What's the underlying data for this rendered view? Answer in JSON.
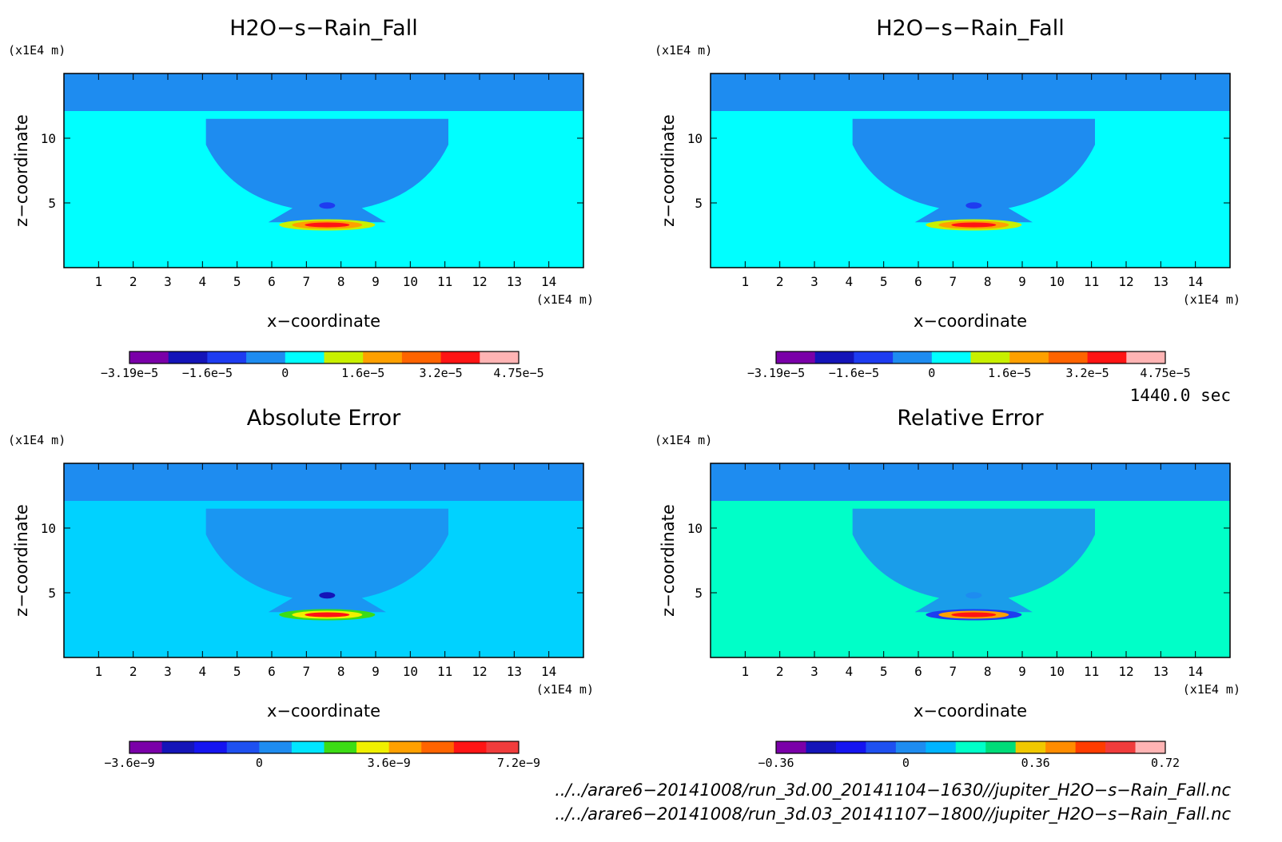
{
  "time_label": "1440.0 sec",
  "file_lines": [
    "../../arare6-20141008/run_3d.00_20141104-1630//jupiter_H2O-s-Rain_Fall.nc",
    "../../arare6-20141008/run_3d.03_20141107-1800//jupiter_H2O-s-Rain_Fall.nc"
  ],
  "colors": {
    "frame": "#000000"
  },
  "chart_data": [
    {
      "type": "heatmap",
      "title": "H2O-s-Rain_Fall",
      "xlabel": "x-coordinate",
      "ylabel": "z-coordinate",
      "xunit": "(x1E4 m)",
      "yunit": "(x1E4 m)",
      "xlim": [
        0,
        15
      ],
      "ylim": [
        0,
        15
      ],
      "xticks": [
        "1",
        "2",
        "3",
        "4",
        "5",
        "6",
        "7",
        "8",
        "9",
        "10",
        "11",
        "12",
        "13",
        "14"
      ],
      "yticks": [
        "5",
        "10"
      ],
      "colorbar": {
        "colors": [
          "#7a00a8",
          "#1414b8",
          "#1e3cf0",
          "#1e8cf0",
          "#00ffff",
          "#c8f000",
          "#ffa000",
          "#ff6400",
          "#ff1414",
          "#ffb4b4"
        ],
        "labels": [
          "-3.19e-5",
          "-1.6e-5",
          "0",
          "1.6e-5",
          "3.2e-5",
          "4.75e-5"
        ]
      },
      "field": {
        "background": "#00ffff",
        "top_layer": "#1e8cf0",
        "cloud": "#1e8cf0",
        "rain_core": [
          "#1e3cf0",
          "#ffa000",
          "#ff1414",
          "#c8f000"
        ]
      }
    },
    {
      "type": "heatmap",
      "title": "H2O-s-Rain_Fall",
      "xlabel": "x-coordinate",
      "ylabel": "z-coordinate",
      "xunit": "(x1E4 m)",
      "yunit": "(x1E4 m)",
      "xlim": [
        0,
        15
      ],
      "ylim": [
        0,
        15
      ],
      "xticks": [
        "1",
        "2",
        "3",
        "4",
        "5",
        "6",
        "7",
        "8",
        "9",
        "10",
        "11",
        "12",
        "13",
        "14"
      ],
      "yticks": [
        "5",
        "10"
      ],
      "colorbar": {
        "colors": [
          "#7a00a8",
          "#1414b8",
          "#1e3cf0",
          "#1e8cf0",
          "#00ffff",
          "#c8f000",
          "#ffa000",
          "#ff6400",
          "#ff1414",
          "#ffb4b4"
        ],
        "labels": [
          "-3.19e-5",
          "-1.6e-5",
          "0",
          "1.6e-5",
          "3.2e-5",
          "4.75e-5"
        ]
      },
      "field": {
        "background": "#00ffff",
        "top_layer": "#1e8cf0",
        "cloud": "#1e8cf0",
        "rain_core": [
          "#1e3cf0",
          "#ffa000",
          "#ff1414",
          "#c8f000"
        ]
      }
    },
    {
      "type": "heatmap",
      "title": "Absolute Error",
      "xlabel": "x-coordinate",
      "ylabel": "z-coordinate",
      "xunit": "(x1E4 m)",
      "yunit": "(x1E4 m)",
      "xlim": [
        0,
        15
      ],
      "ylim": [
        0,
        15
      ],
      "xticks": [
        "1",
        "2",
        "3",
        "4",
        "5",
        "6",
        "7",
        "8",
        "9",
        "10",
        "11",
        "12",
        "13",
        "14"
      ],
      "yticks": [
        "5",
        "10"
      ],
      "colorbar": {
        "colors": [
          "#7a00a8",
          "#1414b8",
          "#1414f0",
          "#1e50f0",
          "#1e8cf0",
          "#00e6ff",
          "#3cdc14",
          "#f0f000",
          "#ffa000",
          "#ff6400",
          "#ff1414",
          "#f03c3c"
        ],
        "labels": [
          "-3.6e-9",
          "0",
          "3.6e-9",
          "7.2e-9"
        ]
      },
      "field": {
        "background": "#00d2ff",
        "top_layer": "#1e8cf0",
        "cloud": "#1e8cf0",
        "rain_core": [
          "#1414b8",
          "#f0f000",
          "#ff1414",
          "#3cdc14"
        ]
      }
    },
    {
      "type": "heatmap",
      "title": "Relative Error",
      "xlabel": "x-coordinate",
      "ylabel": "z-coordinate",
      "xunit": "(x1E4 m)",
      "yunit": "(x1E4 m)",
      "xlim": [
        0,
        15
      ],
      "ylim": [
        0,
        15
      ],
      "xticks": [
        "1",
        "2",
        "3",
        "4",
        "5",
        "6",
        "7",
        "8",
        "9",
        "10",
        "11",
        "12",
        "13",
        "14"
      ],
      "yticks": [
        "5",
        "10"
      ],
      "colorbar": {
        "colors": [
          "#7a00a8",
          "#1414b8",
          "#1414f0",
          "#1e50f0",
          "#1e8cf0",
          "#00b4ff",
          "#00ffc8",
          "#00dc78",
          "#f0c800",
          "#ff8c00",
          "#ff3c00",
          "#f03c3c",
          "#ffb4b4"
        ],
        "labels": [
          "-0.36",
          "0",
          "0.36",
          "0.72"
        ]
      },
      "field": {
        "background": "#00ffc8",
        "top_layer": "#1e8cf0",
        "cloud": "#1e8cf0",
        "rain_core": [
          "#1e8cf0",
          "#ffa000",
          "#ff1414",
          "#1e3cf0"
        ]
      }
    }
  ]
}
